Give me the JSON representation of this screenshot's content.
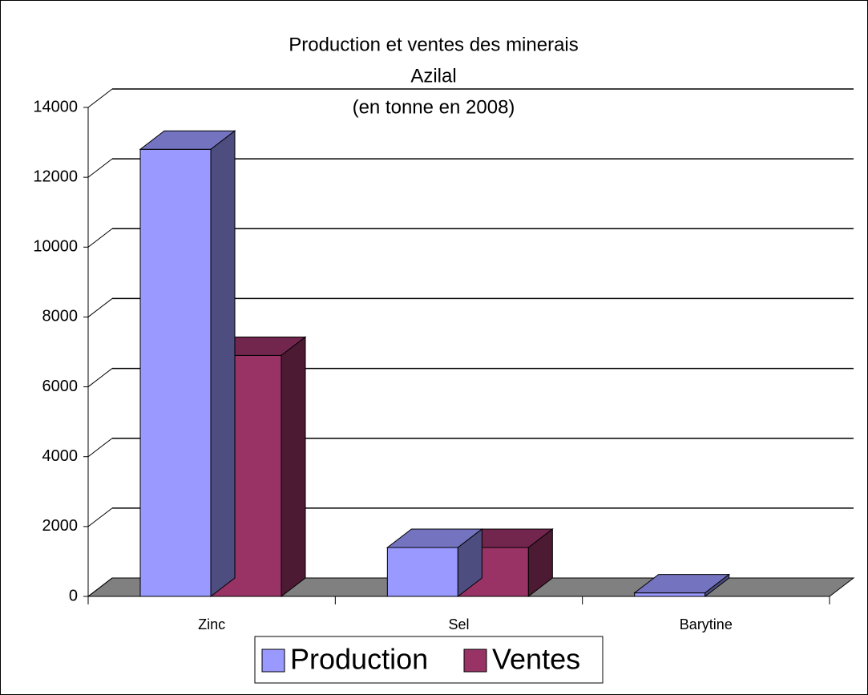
{
  "chart_data": {
    "type": "bar3d",
    "title": [
      "Production et ventes des minerais",
      "Azilal",
      "(en tonne en 2008)"
    ],
    "categories": [
      "Zinc",
      "Sel",
      "Barytine"
    ],
    "series": [
      {
        "name": "Production",
        "color": "#9999ff",
        "values": [
          12800,
          1400,
          100
        ]
      },
      {
        "name": "Ventes",
        "color": "#993366",
        "values": [
          6900,
          1400,
          0
        ]
      }
    ],
    "ylim": [
      0,
      14000
    ],
    "yticks": [
      0,
      2000,
      4000,
      6000,
      8000,
      10000,
      12000,
      14000
    ],
    "grid": true,
    "legend": "bottom"
  }
}
